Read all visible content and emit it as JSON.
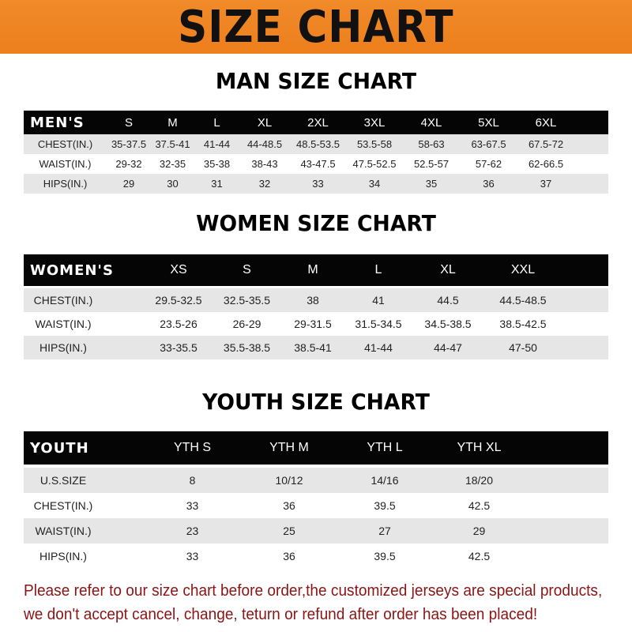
{
  "banner_title": "SIZE CHART",
  "colors": {
    "banner": "#ee7f1c",
    "header_row": "#050505",
    "stripe": "#e6e6e6",
    "note": "#8b1414"
  },
  "men": {
    "title": "MAN SIZE CHART",
    "header": [
      "MEN'S",
      "S",
      "M",
      "L",
      "XL",
      "2XL",
      "3XL",
      "4XL",
      "5XL",
      "6XL"
    ],
    "rows": [
      [
        "CHEST(IN.)",
        "35-37.5",
        "37.5-41",
        "41-44",
        "44-48.5",
        "48.5-53.5",
        "53.5-58",
        "58-63",
        "63-67.5",
        "67.5-72"
      ],
      [
        "WAIST(IN.)",
        "29-32",
        "32-35",
        "35-38",
        "38-43",
        "43-47.5",
        "47.5-52.5",
        "52.5-57",
        "57-62",
        "62-66.5"
      ],
      [
        "HIPS(IN.)",
        "29",
        "30",
        "31",
        "32",
        "33",
        "34",
        "35",
        "36",
        "37"
      ]
    ]
  },
  "women": {
    "title": "WOMEN SIZE CHART",
    "header": [
      "WOMEN'S",
      "XS",
      "S",
      "M",
      "L",
      "XL",
      "XXL"
    ],
    "rows": [
      [
        "CHEST(IN.)",
        "29.5-32.5",
        "32.5-35.5",
        "38",
        "41",
        "44.5",
        "44.5-48.5"
      ],
      [
        "WAIST(IN.)",
        "23.5-26",
        "26-29",
        "29-31.5",
        "31.5-34.5",
        "34.5-38.5",
        "38.5-42.5"
      ],
      [
        "HIPS(IN.)",
        "33-35.5",
        "35.5-38.5",
        "38.5-41",
        "41-44",
        "44-47",
        "47-50"
      ]
    ]
  },
  "youth": {
    "title": "YOUTH SIZE CHART",
    "header": [
      "YOUTH",
      "YTH S",
      "YTH M",
      "YTH L",
      "YTH XL"
    ],
    "rows": [
      [
        "U.S.SIZE",
        "8",
        "10/12",
        "14/16",
        "18/20"
      ],
      [
        "CHEST(IN.)",
        "33",
        "36",
        "39.5",
        "42.5"
      ],
      [
        "WAIST(IN.)",
        "23",
        "25",
        "27",
        "29"
      ],
      [
        "HIPS(IN.)",
        "33",
        "36",
        "39.5",
        "42.5"
      ]
    ]
  },
  "note": {
    "line1": "Please refer to our size chart before order,the customized jerseys are special products,",
    "line2": "we don't accept cancel, change, teturn or refund after order has been placed!"
  }
}
